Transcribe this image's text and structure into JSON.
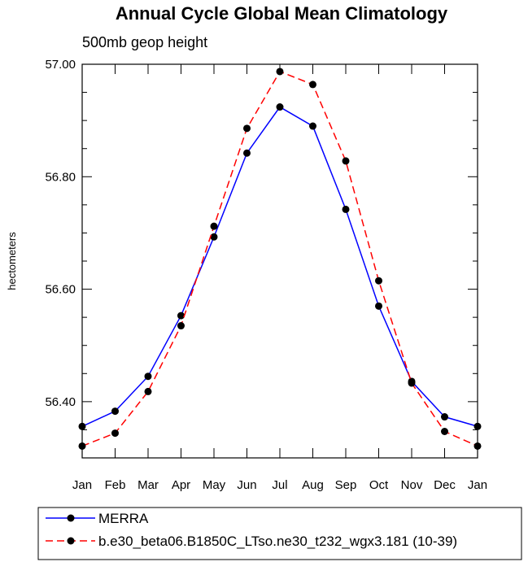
{
  "chart_data": {
    "type": "line",
    "title": "Annual Cycle Global Mean Climatology",
    "subtitle": "500mb geop height",
    "xlabel": "",
    "ylabel": "hectometers",
    "categories": [
      "Jan",
      "Feb",
      "Mar",
      "Apr",
      "May",
      "Jun",
      "Jul",
      "Aug",
      "Sep",
      "Oct",
      "Nov",
      "Dec",
      "Jan"
    ],
    "ylim": [
      56.3,
      57.0
    ],
    "yticks": [
      56.4,
      56.6,
      56.8,
      57.0
    ],
    "ytick_labels": [
      "56.40",
      "56.60",
      "56.80",
      "57.00"
    ],
    "grid": false,
    "legend_position": "bottom",
    "series": [
      {
        "name": "MERRA",
        "color": "#0000ff",
        "line_style": "solid",
        "marker": "filled-circle",
        "values": [
          56.356,
          56.383,
          56.445,
          56.553,
          56.693,
          56.842,
          56.924,
          56.89,
          56.742,
          56.57,
          56.436,
          56.373,
          56.356
        ]
      },
      {
        "name": "b.e30_beta06.B1850C_LTso.ne30_t232_wgx3.181 (10-39)",
        "color": "#ff0000",
        "line_style": "dashed",
        "marker": "filled-circle",
        "values": [
          56.321,
          56.344,
          56.418,
          56.535,
          56.712,
          56.886,
          56.987,
          56.964,
          56.828,
          56.615,
          56.433,
          56.347,
          56.321
        ]
      }
    ]
  }
}
